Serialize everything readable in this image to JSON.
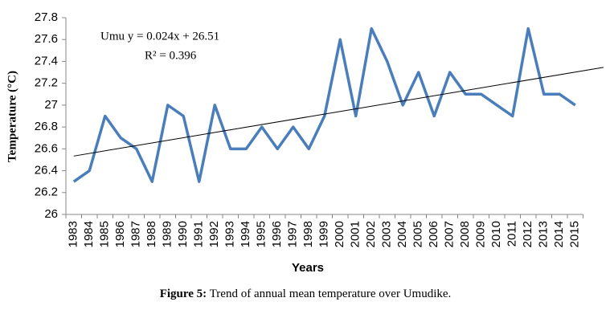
{
  "chart_data": {
    "type": "line",
    "y_label": "Temperature (°C)",
    "x_label": "Years",
    "caption_label": "Figure 5:",
    "caption": "Trend of annual mean temperature over Umudike.",
    "equation": "Umu y = 0.024x + 26.51",
    "r_squared": "R² = 0.396",
    "trendline": {
      "slope": 0.024,
      "intercept": 26.51,
      "color": "#000000"
    },
    "categories": [
      "1983",
      "1984",
      "1985",
      "1986",
      "1987",
      "1988",
      "1989",
      "1990",
      "1991",
      "1992",
      "1993",
      "1994",
      "1995",
      "1996",
      "1997",
      "1998",
      "1999",
      "2000",
      "2001",
      "2002",
      "2003",
      "2004",
      "2005",
      "2006",
      "2007",
      "2008",
      "2009",
      "2010",
      "2011",
      "2012",
      "2013",
      "2014",
      "2015"
    ],
    "series": [
      {
        "name": "Umu",
        "color": "#4a7ebb",
        "values": [
          26.3,
          26.4,
          26.9,
          26.7,
          26.6,
          26.3,
          27.0,
          26.9,
          26.3,
          27.0,
          26.6,
          26.6,
          26.8,
          26.6,
          26.8,
          26.6,
          26.9,
          27.6,
          26.9,
          27.7,
          27.4,
          27.0,
          27.3,
          26.9,
          27.3,
          27.1,
          27.1,
          27.0,
          26.9,
          27.7,
          27.1,
          27.1,
          27.0
        ]
      }
    ],
    "ylim": [
      26,
      27.8
    ],
    "yticks": [
      26,
      26.2,
      26.4,
      26.6,
      26.8,
      27,
      27.2,
      27.4,
      27.6,
      27.8
    ],
    "grid": false
  }
}
